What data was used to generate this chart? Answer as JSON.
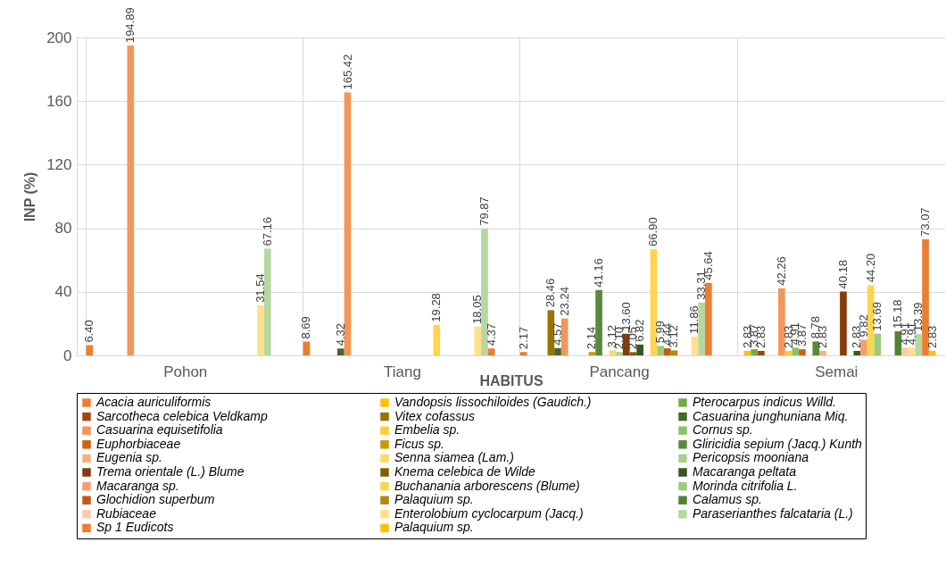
{
  "chart_data": {
    "type": "bar",
    "xlabel": "HABITUS",
    "ylabel": "INP (%)",
    "categories": [
      "Pohon",
      "Tiang",
      "Pancang",
      "Semai"
    ],
    "ylim": [
      0,
      200
    ],
    "yticks": [
      0,
      40,
      80,
      120,
      160,
      200
    ],
    "grid": true,
    "legend": "bottom",
    "series": [
      {
        "name": "Acacia auriculiformis",
        "color": "#ed7d31",
        "values": [
          6.4,
          8.69,
          2.17,
          null
        ],
        "value_labels": [
          "6.40",
          "8.69",
          "2.17",
          null
        ]
      },
      {
        "name": "Vandopsis lissochiloides (Gaudich.)",
        "color": "#ffc000",
        "values": [
          null,
          null,
          null,
          2.83
        ],
        "value_labels": [
          null,
          null,
          null,
          "2.83"
        ]
      },
      {
        "name": "Pterocarpus indicus Willd.",
        "color": "#70ad47",
        "values": [
          null,
          null,
          null,
          3.87
        ],
        "value_labels": [
          null,
          null,
          null,
          "3.87"
        ]
      },
      {
        "name": "Sarcotheca celebica Veldkamp",
        "color": "#9e480e",
        "values": [
          null,
          null,
          null,
          2.83
        ],
        "value_labels": [
          null,
          null,
          null,
          "2.83"
        ]
      },
      {
        "name": "Vitex cofassus",
        "color": "#997300",
        "values": [
          null,
          null,
          28.46,
          null
        ],
        "value_labels": [
          null,
          null,
          "28.46",
          null
        ]
      },
      {
        "name": "Casuarina junghuniana Miq.",
        "color": "#43682b",
        "values": [
          null,
          4.32,
          4.57,
          null
        ],
        "value_labels": [
          null,
          "4.32",
          "4.57",
          null
        ]
      },
      {
        "name": "Casuarina equisetifolia",
        "color": "#f1975a",
        "values": [
          194.89,
          165.42,
          23.24,
          42.26
        ],
        "value_labels": [
          "194.89",
          "165.42",
          "23.24",
          "42.26"
        ]
      },
      {
        "name": "Embelia sp.",
        "color": "#ffcd33",
        "values": [
          null,
          null,
          null,
          2.83
        ],
        "value_labels": [
          null,
          null,
          null,
          "2.83"
        ]
      },
      {
        "name": "Cornus sp.",
        "color": "#8cc168",
        "values": [
          null,
          null,
          null,
          4.91
        ],
        "value_labels": [
          null,
          null,
          null,
          "4.91"
        ]
      },
      {
        "name": "Euphorbiaceae",
        "color": "#d26012",
        "values": [
          null,
          null,
          null,
          3.87
        ],
        "value_labels": [
          null,
          null,
          null,
          "3.87"
        ]
      },
      {
        "name": "Ficus sp.",
        "color": "#cc9a00",
        "values": [
          null,
          null,
          2.14,
          null
        ],
        "value_labels": [
          null,
          null,
          "2.14",
          null
        ]
      },
      {
        "name": "Gliricidia sepium (Jacq.) Kunth",
        "color": "#5a8a39",
        "values": [
          null,
          null,
          41.16,
          8.78
        ],
        "value_labels": [
          null,
          null,
          "41.16",
          "8.78"
        ]
      },
      {
        "name": "Eugenia sp.",
        "color": "#f4b183",
        "values": [
          null,
          null,
          null,
          2.83
        ],
        "value_labels": [
          null,
          null,
          null,
          "2.83"
        ]
      },
      {
        "name": "Senna siamea (Lam.)",
        "color": "#ffd966",
        "values": [
          null,
          null,
          3.12,
          null
        ],
        "value_labels": [
          null,
          null,
          "3.12",
          null
        ]
      },
      {
        "name": "Pericopsis mooniana",
        "color": "#a9d18e",
        "values": [
          null,
          null,
          2.1,
          null
        ],
        "value_labels": [
          null,
          null,
          "2.10",
          null
        ]
      },
      {
        "name": "Trema orientale (L.) Blume",
        "color": "#843c0c",
        "values": [
          null,
          null,
          13.6,
          40.18
        ],
        "value_labels": [
          null,
          null,
          "13.60",
          "40.18"
        ]
      },
      {
        "name": "Knema celebica de Wilde",
        "color": "#7f6000",
        "values": [
          null,
          null,
          2.05,
          null
        ],
        "value_labels": [
          null,
          null,
          "2.05",
          null
        ]
      },
      {
        "name": "Macaranga peltata",
        "color": "#375623",
        "values": [
          null,
          null,
          6.82,
          2.83
        ],
        "value_labels": [
          null,
          null,
          "6.82",
          "2.83"
        ]
      },
      {
        "name": "Macaranga sp.",
        "color": "#f2a06e",
        "values": [
          null,
          null,
          null,
          9.82
        ],
        "value_labels": [
          null,
          null,
          null,
          "9.82"
        ]
      },
      {
        "name": "Buchanania arborescens (Blume)",
        "color": "#ffd54f",
        "values": [
          null,
          19.28,
          66.9,
          44.2
        ],
        "value_labels": [
          null,
          "19.28",
          "66.90",
          "44.20"
        ]
      },
      {
        "name": "Morinda citrifolia L.",
        "color": "#9dcb7e",
        "values": [
          null,
          null,
          5.99,
          13.69
        ],
        "value_labels": [
          null,
          null,
          "5.99",
          "13.69"
        ]
      },
      {
        "name": "Glochidion superbum",
        "color": "#be5a16",
        "values": [
          null,
          null,
          4.44,
          null
        ],
        "value_labels": [
          null,
          null,
          "4.44",
          null
        ]
      },
      {
        "name": "Palaquium sp.",
        "color": "#b8860b",
        "values": [
          null,
          null,
          3.12,
          null
        ],
        "value_labels": [
          null,
          null,
          "3.12",
          null
        ]
      },
      {
        "name": "Calamus sp.",
        "color": "#548235",
        "values": [
          null,
          null,
          null,
          15.18
        ],
        "value_labels": [
          null,
          null,
          null,
          "15.18"
        ]
      },
      {
        "name": "Rubiaceae",
        "color": "#f8cbad",
        "values": [
          null,
          null,
          null,
          4.91
        ],
        "value_labels": [
          null,
          null,
          null,
          "4.91"
        ]
      },
      {
        "name": "Enterolobium cyclocarpum (Jacq.)",
        "color": "#ffe08a",
        "values": [
          31.54,
          18.05,
          11.86,
          4.91
        ],
        "value_labels": [
          "31.54",
          "18.05",
          "11.86",
          "4.91"
        ]
      },
      {
        "name": "Paraserianthes falcataria (L.)",
        "color": "#b6d7a0",
        "values": [
          67.16,
          79.87,
          33.31,
          13.39
        ],
        "value_labels": [
          "67.16",
          "79.87",
          "33.31",
          "13.39"
        ]
      },
      {
        "name": "Sp 1 Eudicots",
        "color": "#ed7d31",
        "values": [
          null,
          4.37,
          45.64,
          73.07
        ],
        "value_labels": [
          null,
          "4.37",
          "45.64",
          "73.07"
        ]
      },
      {
        "name": "Palaquium sp.",
        "color": "#ffc000",
        "values": [
          null,
          null,
          null,
          2.83
        ],
        "value_labels": [
          null,
          null,
          null,
          "2.83"
        ]
      }
    ]
  }
}
